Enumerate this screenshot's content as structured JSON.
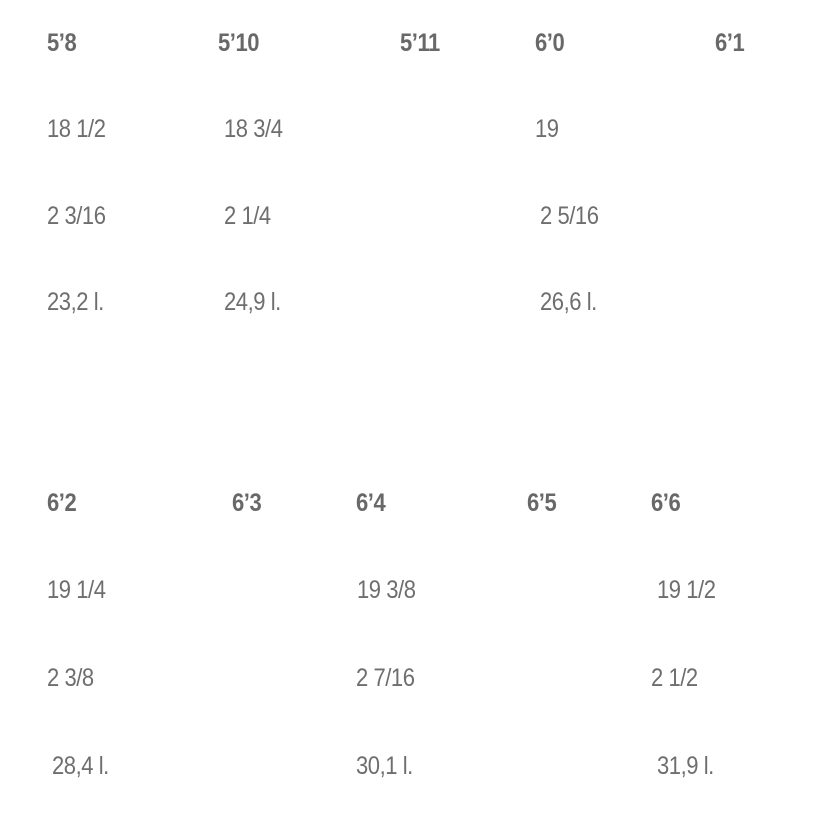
{
  "sections": [
    {
      "headers": [
        "5’8",
        "5’10",
        "5’11",
        "6’0",
        "6’1"
      ],
      "rows": [
        [
          "18 1/2",
          "18 3/4",
          "",
          "19",
          ""
        ],
        [
          "2 3/16",
          "2 1/4",
          "",
          "2 5/16",
          ""
        ],
        [
          "23,2 l.",
          "24,9 l.",
          "",
          "26,6 l.",
          ""
        ]
      ]
    },
    {
      "headers": [
        "6’2",
        "6’3",
        "6’4",
        "6’5",
        "6’6"
      ],
      "rows": [
        [
          "19 1/4",
          "",
          "19 3/8",
          "",
          "19 1/2"
        ],
        [
          "2 3/8",
          "",
          "2 7/16",
          "",
          "2 1/2"
        ],
        [
          "28,4 l.",
          "",
          "30,1 l.",
          "",
          "31,9 l."
        ]
      ]
    }
  ]
}
